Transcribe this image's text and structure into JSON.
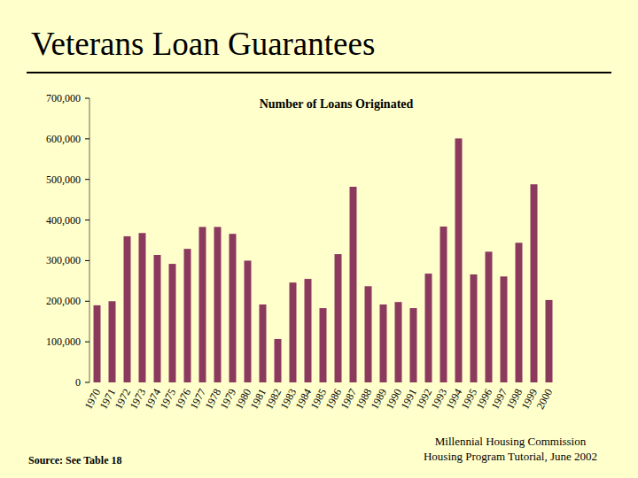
{
  "slide": {
    "title": "Veterans Loan Guarantees",
    "source": "Source: See Table 18",
    "footer": [
      "Millennial Housing Commission",
      "Housing Program Tutorial, June 2002"
    ]
  },
  "chart_data": {
    "type": "bar",
    "title": "Number of Loans Originated",
    "categories": [
      "1970",
      "1971",
      "1972",
      "1973",
      "1974",
      "1975",
      "1976",
      "1977",
      "1978",
      "1979",
      "1980",
      "1981",
      "1982",
      "1983",
      "1984",
      "1985",
      "1986",
      "1987",
      "1988",
      "1989",
      "1990",
      "1991",
      "1992",
      "1993",
      "1994",
      "1995",
      "1996",
      "1997",
      "1998",
      "1999",
      "2000"
    ],
    "values": [
      190000,
      200000,
      360000,
      368000,
      314000,
      292000,
      329000,
      383000,
      383000,
      366000,
      300000,
      192000,
      107000,
      246000,
      255000,
      183000,
      316000,
      482000,
      237000,
      192000,
      198000,
      183000,
      268000,
      384000,
      601000,
      266000,
      322000,
      261000,
      344000,
      488000,
      203000
    ],
    "color": "#8b3a5e",
    "ylim": [
      0,
      700000
    ],
    "yticks": [
      0,
      {
        "value": 100000,
        "label": "100,000"
      },
      {
        "value": 200000,
        "label": "200,000"
      },
      {
        "value": 300000,
        "label": "300,000"
      },
      {
        "value": 400000,
        "label": "400,000"
      },
      {
        "value": 500000,
        "label": "500,000"
      },
      {
        "value": 600000,
        "label": "600,000"
      },
      {
        "value": 700000,
        "label": "700,000"
      }
    ],
    "grid": false
  }
}
